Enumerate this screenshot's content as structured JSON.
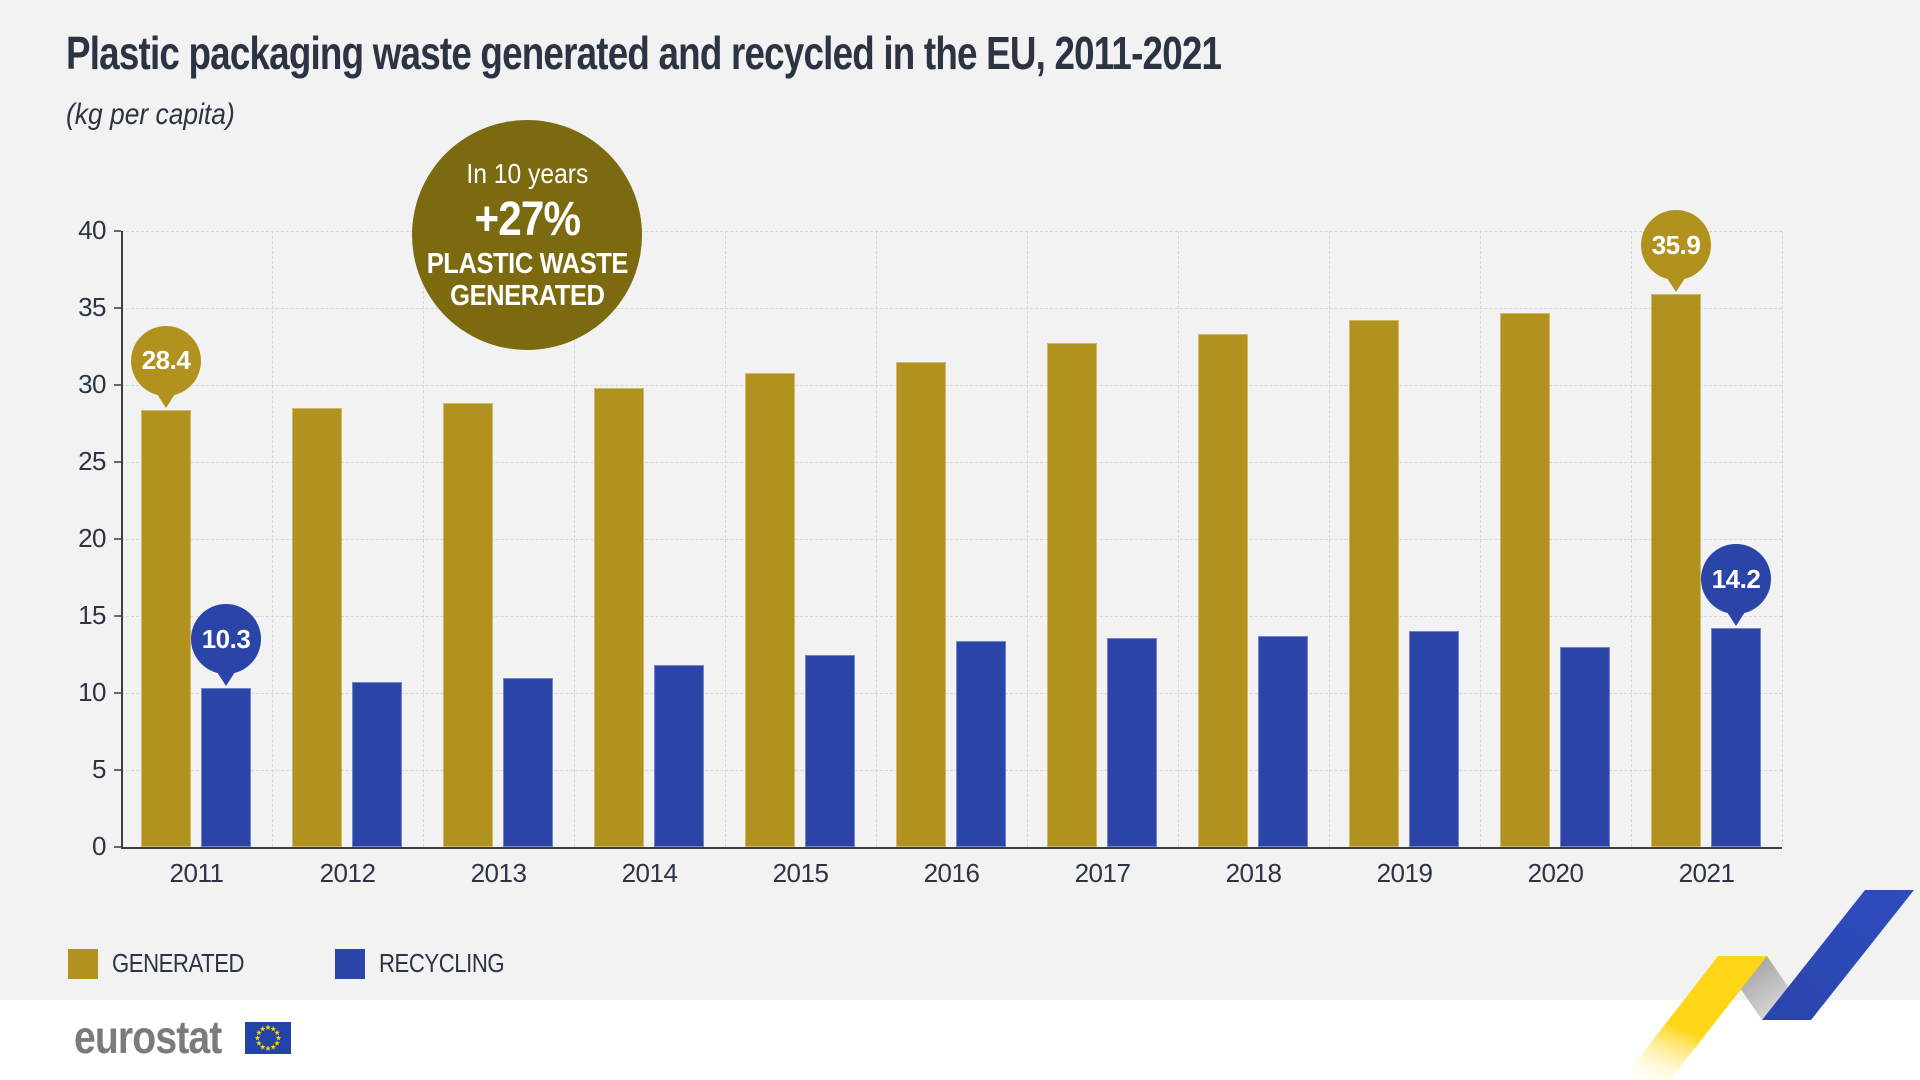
{
  "header": {
    "title": "Plastic packaging waste generated and recycled in the EU, 2011-2021",
    "subtitle": "(kg per capita)"
  },
  "callout": {
    "line1": "In 10 years",
    "line2": "+27%",
    "line3": "PLASTIC WASTE",
    "line4": "GENERATED"
  },
  "chart_data": {
    "type": "bar",
    "title": "Plastic packaging waste generated and recycled in the EU, 2011-2021",
    "unit": "kg per capita",
    "categories": [
      "2011",
      "2012",
      "2013",
      "2014",
      "2015",
      "2016",
      "2017",
      "2018",
      "2019",
      "2020",
      "2021"
    ],
    "series": [
      {
        "name": "GENERATED",
        "color": "#b2921e",
        "values": [
          28.4,
          28.5,
          28.8,
          29.8,
          30.8,
          31.5,
          32.7,
          33.3,
          34.2,
          34.7,
          35.9
        ]
      },
      {
        "name": "RECYCLING",
        "color": "#2a44a7",
        "values": [
          10.3,
          10.7,
          11.0,
          11.8,
          12.5,
          13.4,
          13.6,
          13.7,
          14.0,
          13.0,
          14.2
        ]
      }
    ],
    "ylim": [
      0,
      40
    ],
    "ytick_step": 5,
    "grid": "dashed-horizontal-and-vertical",
    "legend_position": "bottom-left",
    "data_labels": [
      {
        "series": 0,
        "category": "2011",
        "text": "28.4"
      },
      {
        "series": 1,
        "category": "2011",
        "text": "10.3"
      },
      {
        "series": 0,
        "category": "2021",
        "text": "35.9"
      },
      {
        "series": 1,
        "category": "2021",
        "text": "14.2"
      }
    ]
  },
  "footer": {
    "brand": "eurostat"
  },
  "colors": {
    "background": "#f2f2f3",
    "footer_background": "#ffffff",
    "generated": "#b2921e",
    "recycling": "#2a44a7",
    "callout_background": "#7c6a10",
    "text": "#2c3444",
    "grid": "#d6d6d6",
    "axis": "#3f3f3f",
    "eurostat_gray": "#7b7b7b",
    "eu_flag_blue": "#2243a8",
    "eu_star_yellow": "#ffd617",
    "ribbon_yellow": "#ffd617",
    "ribbon_gray": "#9a9a9a",
    "ribbon_blue": "#2a45ab"
  }
}
